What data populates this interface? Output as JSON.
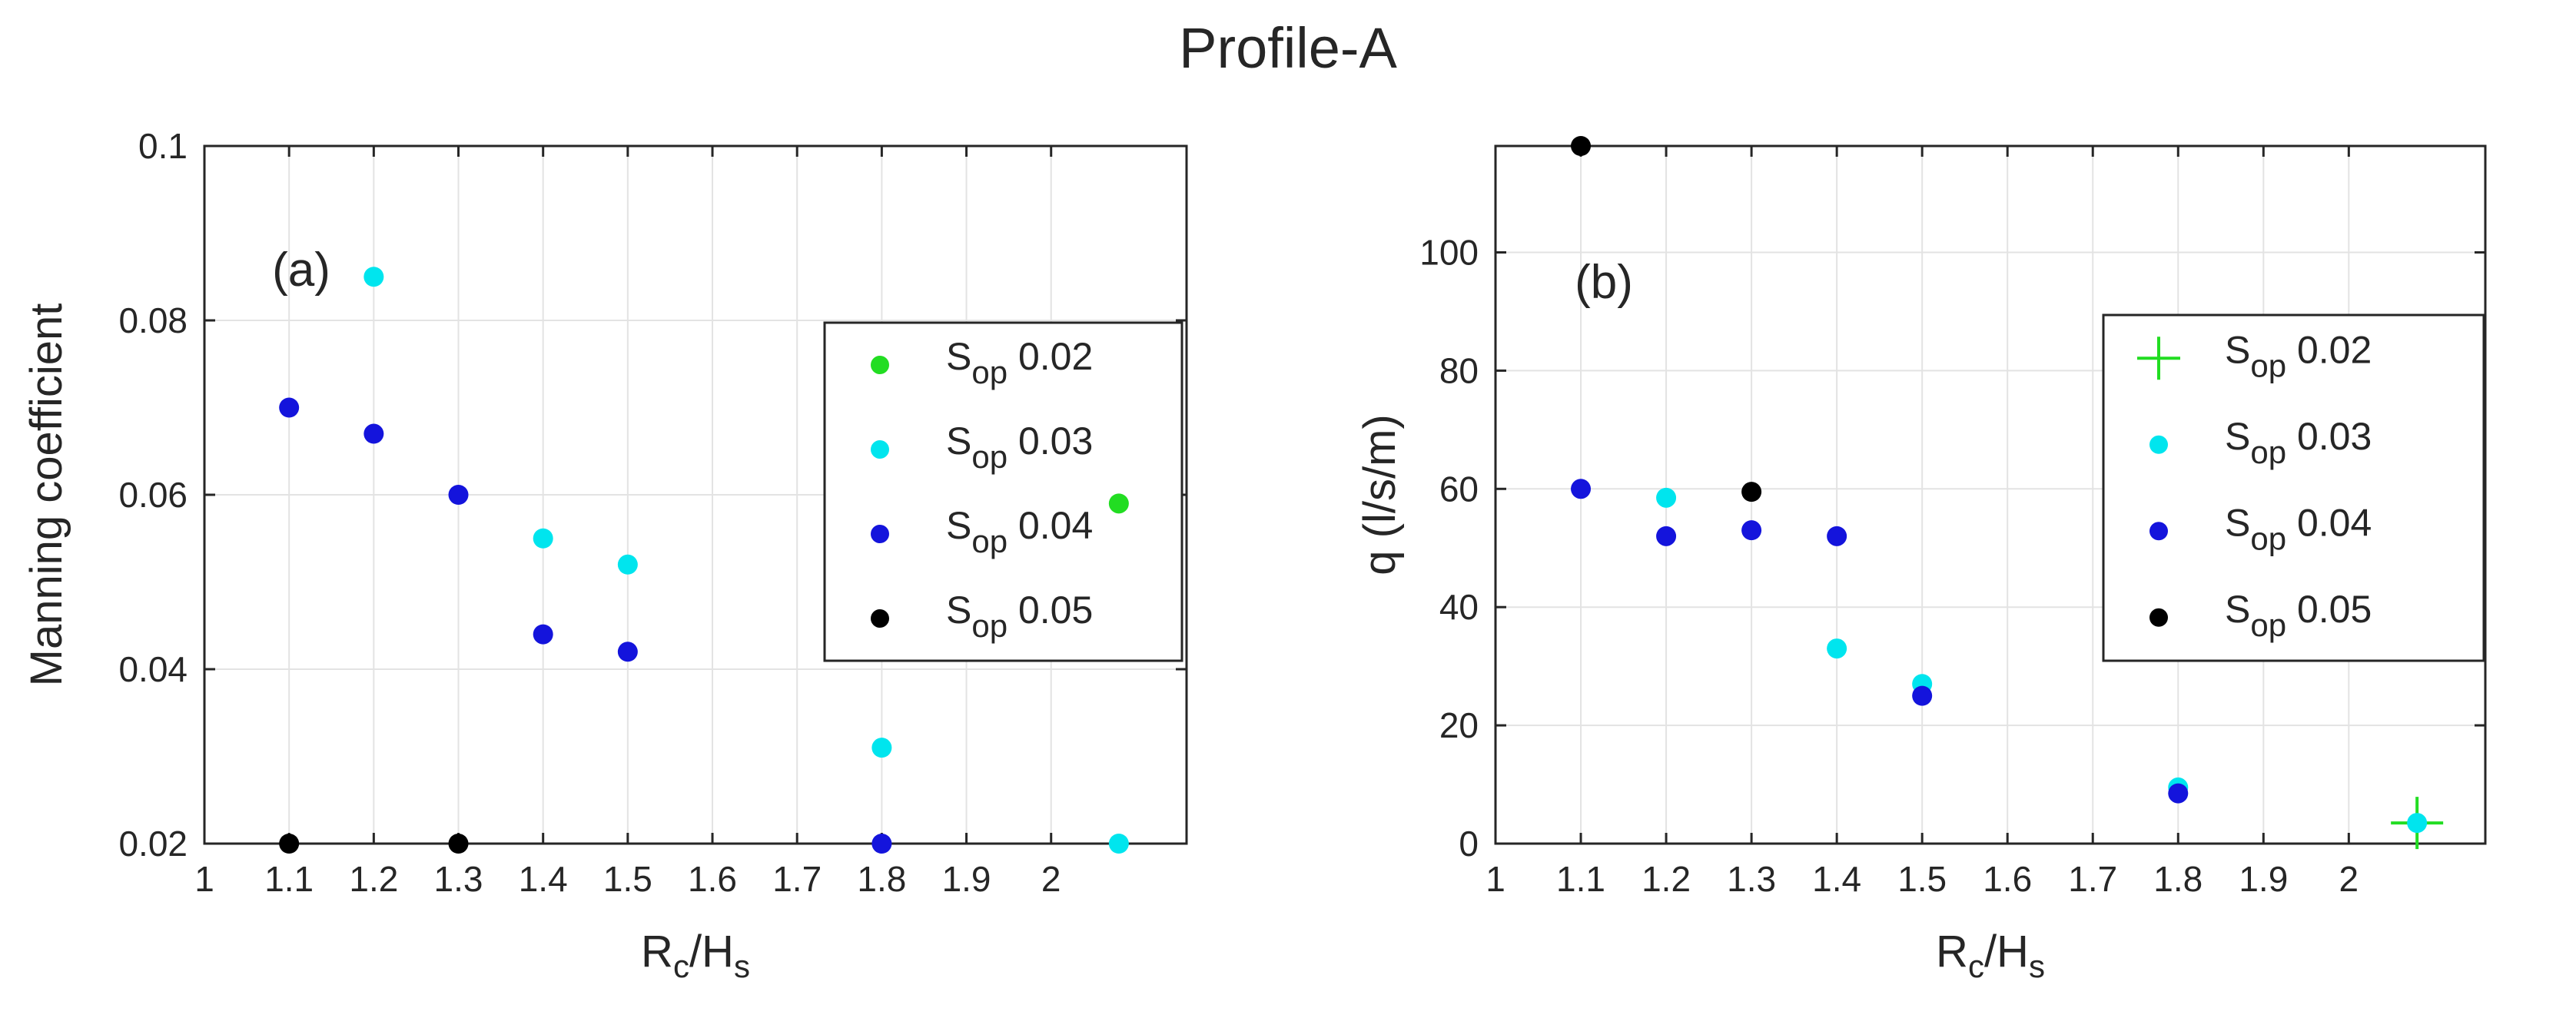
{
  "title": "Profile-A",
  "colors": {
    "S_op 0.02": "#22dd22",
    "S_op 0.03": "#00e5ee",
    "S_op 0.04": "#1414dc",
    "S_op 0.05": "#000000",
    "axis": "#262626",
    "grid": "#e3e3e3"
  },
  "chart_data": [
    {
      "type": "scatter",
      "panel_label": "(a)",
      "title": "",
      "xlabel": "R_c/H_s",
      "xlabel_parts": {
        "r": "R",
        "r_sub": "c",
        "slash": "/H",
        "h_sub": "s"
      },
      "ylabel": "Manning coefficient",
      "xlim": [
        1,
        2.16
      ],
      "ylim": [
        0.02,
        0.1
      ],
      "xticks": [
        1,
        1.1,
        1.2,
        1.3,
        1.4,
        1.5,
        1.6,
        1.7,
        1.8,
        1.9,
        2
      ],
      "xtick_labels": [
        "1",
        "1.1",
        "1.2",
        "1.3",
        "1.4",
        "1.5",
        "1.6",
        "1.7",
        "1.8",
        "1.9",
        "2"
      ],
      "yticks": [
        0.02,
        0.04,
        0.06,
        0.08,
        0.1
      ],
      "ytick_labels": [
        "0.02",
        "0.04",
        "0.06",
        "0.08",
        "0.1"
      ],
      "grid": true,
      "legend_position": "right",
      "series": [
        {
          "name": "S_op 0.02",
          "label_main": "S",
          "label_sub": "op",
          "label_value": "0.02",
          "marker": "dot",
          "x": [
            2.08
          ],
          "y": [
            0.059
          ]
        },
        {
          "name": "S_op 0.03",
          "label_main": "S",
          "label_sub": "op",
          "label_value": "0.03",
          "marker": "dot",
          "x": [
            1.2,
            1.4,
            1.5,
            1.8,
            2.08
          ],
          "y": [
            0.085,
            0.055,
            0.052,
            0.031,
            0.02
          ]
        },
        {
          "name": "S_op 0.04",
          "label_main": "S",
          "label_sub": "op",
          "label_value": "0.04",
          "marker": "dot",
          "x": [
            1.1,
            1.2,
            1.3,
            1.4,
            1.5,
            1.8
          ],
          "y": [
            0.07,
            0.067,
            0.06,
            0.044,
            0.042,
            0.02
          ]
        },
        {
          "name": "S_op 0.05",
          "label_main": "S",
          "label_sub": "op",
          "label_value": "0.05",
          "marker": "dot",
          "x": [
            1.1,
            1.3
          ],
          "y": [
            0.02,
            0.02
          ]
        }
      ]
    },
    {
      "type": "scatter",
      "panel_label": "(b)",
      "title": "",
      "xlabel": "R_c/H_s",
      "xlabel_parts": {
        "r": "R",
        "r_sub": "c",
        "slash": "/H",
        "h_sub": "s"
      },
      "ylabel": "q (l/s/m)",
      "xlim": [
        1,
        2.16
      ],
      "ylim": [
        0,
        118
      ],
      "xticks": [
        1,
        1.1,
        1.2,
        1.3,
        1.4,
        1.5,
        1.6,
        1.7,
        1.8,
        1.9,
        2
      ],
      "xtick_labels": [
        "1",
        "1.1",
        "1.2",
        "1.3",
        "1.4",
        "1.5",
        "1.6",
        "1.7",
        "1.8",
        "1.9",
        "2"
      ],
      "yticks": [
        0,
        20,
        40,
        60,
        80,
        100
      ],
      "ytick_labels": [
        "0",
        "20",
        "40",
        "60",
        "80",
        "100"
      ],
      "grid": true,
      "legend_position": "right",
      "series": [
        {
          "name": "S_op 0.02",
          "label_main": "S",
          "label_sub": "op",
          "label_value": "0.02",
          "marker": "plus",
          "x": [
            2.08
          ],
          "y": [
            3.5
          ]
        },
        {
          "name": "S_op 0.03",
          "label_main": "S",
          "label_sub": "op",
          "label_value": "0.03",
          "marker": "dot",
          "x": [
            1.2,
            1.4,
            1.5,
            1.8,
            2.08
          ],
          "y": [
            58.5,
            33,
            27,
            9.5,
            3.5
          ]
        },
        {
          "name": "S_op 0.04",
          "label_main": "S",
          "label_sub": "op",
          "label_value": "0.04",
          "marker": "dot",
          "x": [
            1.1,
            1.2,
            1.3,
            1.4,
            1.5,
            1.8
          ],
          "y": [
            60,
            52,
            53,
            52,
            25,
            8.5
          ]
        },
        {
          "name": "S_op 0.05",
          "label_main": "S",
          "label_sub": "op",
          "label_value": "0.05",
          "marker": "dot",
          "x": [
            1.1,
            1.3
          ],
          "y": [
            118,
            59.5
          ]
        }
      ]
    }
  ]
}
